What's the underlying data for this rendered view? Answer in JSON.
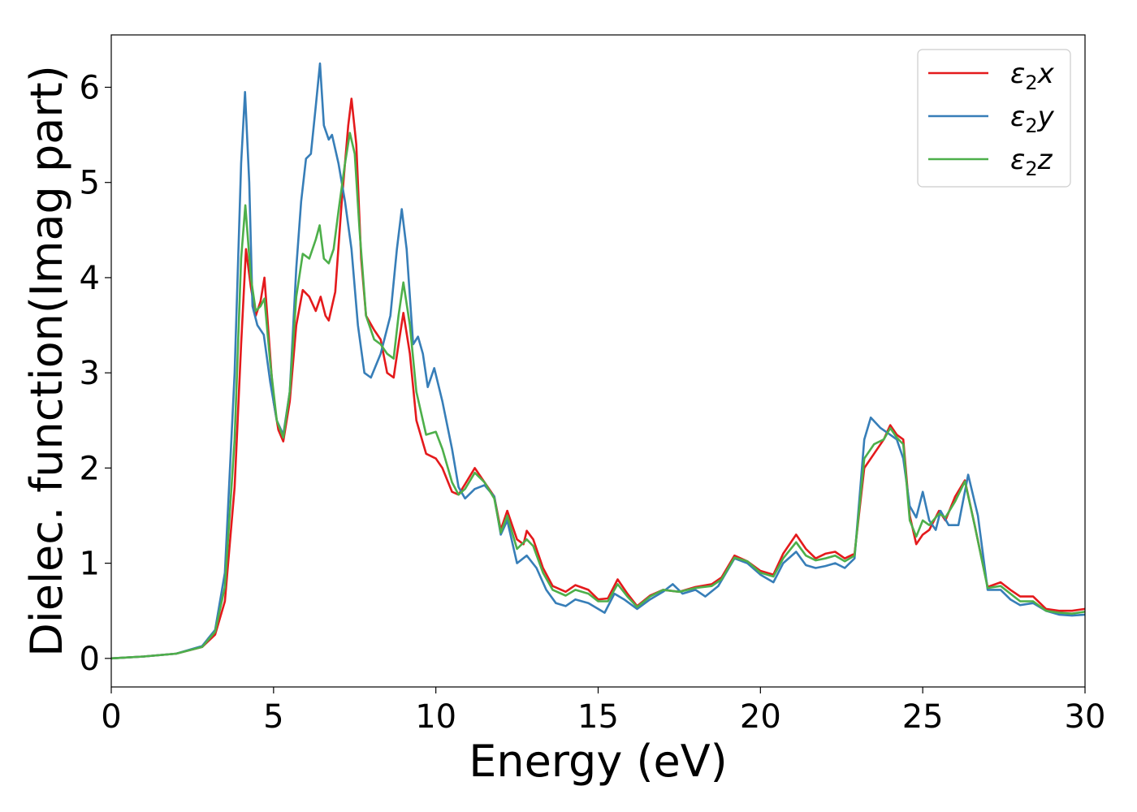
{
  "chart_data": {
    "type": "line",
    "title": "",
    "xlabel": "Energy (eV)",
    "ylabel": "Dielec. function(Imag part)",
    "xlim": [
      0,
      30
    ],
    "ylim": [
      -0.3,
      6.55
    ],
    "xticks": [
      0,
      5,
      10,
      15,
      20,
      25,
      30
    ],
    "yticks": [
      0,
      1,
      2,
      3,
      4,
      5,
      6
    ],
    "grid": false,
    "legend_position": "top-right",
    "series": [
      {
        "name": "ε2x",
        "legend_base": "ε",
        "legend_sub": "2",
        "legend_suffix": "x",
        "color": "#e41a1c",
        "points": [
          [
            0,
            0
          ],
          [
            1,
            0.02
          ],
          [
            2,
            0.05
          ],
          [
            2.8,
            0.12
          ],
          [
            3.2,
            0.25
          ],
          [
            3.5,
            0.6
          ],
          [
            3.8,
            1.8
          ],
          [
            4.0,
            3.3
          ],
          [
            4.15,
            4.3
          ],
          [
            4.3,
            3.9
          ],
          [
            4.45,
            3.6
          ],
          [
            4.6,
            3.75
          ],
          [
            4.72,
            4.0
          ],
          [
            4.85,
            3.4
          ],
          [
            5.0,
            2.7
          ],
          [
            5.15,
            2.4
          ],
          [
            5.3,
            2.28
          ],
          [
            5.5,
            2.7
          ],
          [
            5.7,
            3.5
          ],
          [
            5.9,
            3.87
          ],
          [
            6.1,
            3.8
          ],
          [
            6.3,
            3.65
          ],
          [
            6.45,
            3.8
          ],
          [
            6.6,
            3.6
          ],
          [
            6.7,
            3.55
          ],
          [
            6.9,
            3.85
          ],
          [
            7.1,
            4.8
          ],
          [
            7.3,
            5.6
          ],
          [
            7.4,
            5.88
          ],
          [
            7.55,
            5.4
          ],
          [
            7.7,
            4.2
          ],
          [
            7.85,
            3.6
          ],
          [
            8.1,
            3.45
          ],
          [
            8.3,
            3.35
          ],
          [
            8.5,
            3.0
          ],
          [
            8.7,
            2.95
          ],
          [
            8.85,
            3.3
          ],
          [
            9.0,
            3.63
          ],
          [
            9.2,
            3.2
          ],
          [
            9.4,
            2.5
          ],
          [
            9.7,
            2.15
          ],
          [
            10.0,
            2.1
          ],
          [
            10.2,
            2.0
          ],
          [
            10.5,
            1.75
          ],
          [
            10.7,
            1.72
          ],
          [
            10.9,
            1.83
          ],
          [
            11.2,
            2.0
          ],
          [
            11.5,
            1.85
          ],
          [
            11.8,
            1.7
          ],
          [
            12.0,
            1.35
          ],
          [
            12.2,
            1.55
          ],
          [
            12.5,
            1.25
          ],
          [
            12.7,
            1.2
          ],
          [
            12.8,
            1.34
          ],
          [
            13.0,
            1.25
          ],
          [
            13.3,
            0.95
          ],
          [
            13.6,
            0.76
          ],
          [
            14.0,
            0.7
          ],
          [
            14.3,
            0.77
          ],
          [
            14.7,
            0.72
          ],
          [
            15.0,
            0.62
          ],
          [
            15.3,
            0.63
          ],
          [
            15.6,
            0.83
          ],
          [
            15.9,
            0.68
          ],
          [
            16.2,
            0.55
          ],
          [
            16.6,
            0.66
          ],
          [
            17.0,
            0.72
          ],
          [
            17.5,
            0.7
          ],
          [
            18.0,
            0.75
          ],
          [
            18.5,
            0.78
          ],
          [
            18.8,
            0.85
          ],
          [
            19.2,
            1.08
          ],
          [
            19.6,
            1.02
          ],
          [
            20.0,
            0.92
          ],
          [
            20.4,
            0.88
          ],
          [
            20.7,
            1.1
          ],
          [
            21.1,
            1.3
          ],
          [
            21.4,
            1.15
          ],
          [
            21.7,
            1.05
          ],
          [
            22.0,
            1.1
          ],
          [
            22.3,
            1.12
          ],
          [
            22.6,
            1.05
          ],
          [
            22.9,
            1.1
          ],
          [
            23.2,
            2.0
          ],
          [
            23.5,
            2.15
          ],
          [
            23.8,
            2.3
          ],
          [
            24.0,
            2.45
          ],
          [
            24.2,
            2.35
          ],
          [
            24.4,
            2.3
          ],
          [
            24.6,
            1.5
          ],
          [
            24.8,
            1.2
          ],
          [
            25.0,
            1.3
          ],
          [
            25.2,
            1.35
          ],
          [
            25.5,
            1.55
          ],
          [
            25.7,
            1.45
          ],
          [
            26.0,
            1.7
          ],
          [
            26.3,
            1.87
          ],
          [
            26.6,
            1.4
          ],
          [
            27.0,
            0.75
          ],
          [
            27.4,
            0.8
          ],
          [
            27.7,
            0.72
          ],
          [
            28.0,
            0.65
          ],
          [
            28.4,
            0.65
          ],
          [
            28.8,
            0.52
          ],
          [
            29.2,
            0.5
          ],
          [
            29.6,
            0.5
          ],
          [
            30.0,
            0.52
          ]
        ]
      },
      {
        "name": "ε2y",
        "legend_base": "ε",
        "legend_sub": "2",
        "legend_suffix": "y",
        "color": "#377eb8",
        "points": [
          [
            0,
            0
          ],
          [
            1,
            0.02
          ],
          [
            2,
            0.05
          ],
          [
            2.8,
            0.13
          ],
          [
            3.2,
            0.3
          ],
          [
            3.5,
            0.9
          ],
          [
            3.8,
            3.0
          ],
          [
            4.0,
            5.2
          ],
          [
            4.12,
            5.95
          ],
          [
            4.25,
            5.0
          ],
          [
            4.35,
            3.7
          ],
          [
            4.5,
            3.5
          ],
          [
            4.7,
            3.4
          ],
          [
            4.9,
            2.9
          ],
          [
            5.1,
            2.5
          ],
          [
            5.3,
            2.35
          ],
          [
            5.5,
            2.8
          ],
          [
            5.7,
            4.1
          ],
          [
            5.85,
            4.8
          ],
          [
            6.0,
            5.25
          ],
          [
            6.15,
            5.3
          ],
          [
            6.3,
            5.8
          ],
          [
            6.43,
            6.25
          ],
          [
            6.55,
            5.6
          ],
          [
            6.7,
            5.45
          ],
          [
            6.8,
            5.5
          ],
          [
            7.0,
            5.2
          ],
          [
            7.2,
            4.8
          ],
          [
            7.4,
            4.3
          ],
          [
            7.6,
            3.5
          ],
          [
            7.8,
            3.0
          ],
          [
            8.0,
            2.95
          ],
          [
            8.3,
            3.2
          ],
          [
            8.6,
            3.6
          ],
          [
            8.8,
            4.3
          ],
          [
            8.95,
            4.72
          ],
          [
            9.1,
            4.3
          ],
          [
            9.3,
            3.3
          ],
          [
            9.45,
            3.38
          ],
          [
            9.6,
            3.2
          ],
          [
            9.75,
            2.85
          ],
          [
            9.95,
            3.05
          ],
          [
            10.2,
            2.7
          ],
          [
            10.5,
            2.2
          ],
          [
            10.7,
            1.8
          ],
          [
            10.9,
            1.68
          ],
          [
            11.2,
            1.78
          ],
          [
            11.5,
            1.82
          ],
          [
            11.8,
            1.7
          ],
          [
            12.0,
            1.3
          ],
          [
            12.2,
            1.45
          ],
          [
            12.5,
            1.0
          ],
          [
            12.8,
            1.08
          ],
          [
            13.1,
            0.95
          ],
          [
            13.4,
            0.72
          ],
          [
            13.7,
            0.58
          ],
          [
            14.0,
            0.55
          ],
          [
            14.3,
            0.62
          ],
          [
            14.7,
            0.58
          ],
          [
            15.0,
            0.52
          ],
          [
            15.2,
            0.48
          ],
          [
            15.5,
            0.68
          ],
          [
            15.8,
            0.62
          ],
          [
            16.2,
            0.52
          ],
          [
            16.6,
            0.62
          ],
          [
            17.0,
            0.7
          ],
          [
            17.3,
            0.78
          ],
          [
            17.6,
            0.68
          ],
          [
            18.0,
            0.72
          ],
          [
            18.3,
            0.65
          ],
          [
            18.7,
            0.76
          ],
          [
            19.2,
            1.05
          ],
          [
            19.6,
            1.0
          ],
          [
            20.0,
            0.88
          ],
          [
            20.4,
            0.8
          ],
          [
            20.7,
            1.0
          ],
          [
            21.1,
            1.12
          ],
          [
            21.4,
            0.98
          ],
          [
            21.7,
            0.95
          ],
          [
            22.0,
            0.97
          ],
          [
            22.3,
            1.0
          ],
          [
            22.6,
            0.95
          ],
          [
            22.9,
            1.05
          ],
          [
            23.2,
            2.3
          ],
          [
            23.4,
            2.53
          ],
          [
            23.7,
            2.42
          ],
          [
            24.0,
            2.35
          ],
          [
            24.2,
            2.3
          ],
          [
            24.4,
            2.1
          ],
          [
            24.6,
            1.6
          ],
          [
            24.8,
            1.48
          ],
          [
            25.0,
            1.75
          ],
          [
            25.2,
            1.45
          ],
          [
            25.4,
            1.35
          ],
          [
            25.55,
            1.55
          ],
          [
            25.8,
            1.4
          ],
          [
            26.1,
            1.4
          ],
          [
            26.4,
            1.93
          ],
          [
            26.7,
            1.5
          ],
          [
            27.0,
            0.72
          ],
          [
            27.4,
            0.72
          ],
          [
            27.7,
            0.62
          ],
          [
            28.0,
            0.56
          ],
          [
            28.4,
            0.58
          ],
          [
            28.8,
            0.5
          ],
          [
            29.2,
            0.46
          ],
          [
            29.6,
            0.45
          ],
          [
            30.0,
            0.46
          ]
        ]
      },
      {
        "name": "ε2z",
        "legend_base": "ε",
        "legend_sub": "2",
        "legend_suffix": "z",
        "color": "#4daf4a",
        "points": [
          [
            0,
            0
          ],
          [
            1,
            0.02
          ],
          [
            2,
            0.05
          ],
          [
            2.8,
            0.12
          ],
          [
            3.2,
            0.28
          ],
          [
            3.5,
            0.75
          ],
          [
            3.8,
            2.3
          ],
          [
            4.0,
            4.2
          ],
          [
            4.13,
            4.76
          ],
          [
            4.3,
            4.0
          ],
          [
            4.45,
            3.65
          ],
          [
            4.6,
            3.7
          ],
          [
            4.72,
            3.78
          ],
          [
            4.9,
            3.1
          ],
          [
            5.1,
            2.5
          ],
          [
            5.3,
            2.32
          ],
          [
            5.5,
            2.8
          ],
          [
            5.7,
            3.8
          ],
          [
            5.9,
            4.25
          ],
          [
            6.1,
            4.2
          ],
          [
            6.3,
            4.4
          ],
          [
            6.42,
            4.55
          ],
          [
            6.55,
            4.2
          ],
          [
            6.7,
            4.15
          ],
          [
            6.85,
            4.3
          ],
          [
            7.0,
            4.7
          ],
          [
            7.2,
            5.2
          ],
          [
            7.35,
            5.52
          ],
          [
            7.5,
            5.3
          ],
          [
            7.65,
            4.5
          ],
          [
            7.85,
            3.6
          ],
          [
            8.1,
            3.35
          ],
          [
            8.3,
            3.3
          ],
          [
            8.5,
            3.2
          ],
          [
            8.7,
            3.15
          ],
          [
            8.85,
            3.6
          ],
          [
            9.0,
            3.95
          ],
          [
            9.2,
            3.5
          ],
          [
            9.4,
            2.8
          ],
          [
            9.7,
            2.35
          ],
          [
            10.0,
            2.38
          ],
          [
            10.2,
            2.2
          ],
          [
            10.5,
            1.85
          ],
          [
            10.7,
            1.72
          ],
          [
            10.9,
            1.78
          ],
          [
            11.2,
            1.95
          ],
          [
            11.5,
            1.85
          ],
          [
            11.8,
            1.68
          ],
          [
            12.0,
            1.32
          ],
          [
            12.2,
            1.5
          ],
          [
            12.5,
            1.15
          ],
          [
            12.8,
            1.25
          ],
          [
            13.0,
            1.18
          ],
          [
            13.3,
            0.9
          ],
          [
            13.6,
            0.72
          ],
          [
            14.0,
            0.66
          ],
          [
            14.3,
            0.72
          ],
          [
            14.7,
            0.68
          ],
          [
            15.0,
            0.6
          ],
          [
            15.3,
            0.6
          ],
          [
            15.6,
            0.78
          ],
          [
            15.9,
            0.65
          ],
          [
            16.2,
            0.54
          ],
          [
            16.6,
            0.65
          ],
          [
            17.0,
            0.72
          ],
          [
            17.5,
            0.7
          ],
          [
            18.0,
            0.74
          ],
          [
            18.5,
            0.76
          ],
          [
            18.8,
            0.83
          ],
          [
            19.2,
            1.06
          ],
          [
            19.6,
            1.02
          ],
          [
            20.0,
            0.9
          ],
          [
            20.4,
            0.86
          ],
          [
            20.7,
            1.05
          ],
          [
            21.1,
            1.22
          ],
          [
            21.4,
            1.08
          ],
          [
            21.7,
            1.03
          ],
          [
            22.0,
            1.05
          ],
          [
            22.3,
            1.08
          ],
          [
            22.6,
            1.02
          ],
          [
            22.9,
            1.08
          ],
          [
            23.2,
            2.1
          ],
          [
            23.5,
            2.25
          ],
          [
            23.8,
            2.3
          ],
          [
            24.0,
            2.42
          ],
          [
            24.2,
            2.32
          ],
          [
            24.4,
            2.25
          ],
          [
            24.6,
            1.45
          ],
          [
            24.8,
            1.28
          ],
          [
            25.0,
            1.45
          ],
          [
            25.2,
            1.4
          ],
          [
            25.5,
            1.52
          ],
          [
            25.7,
            1.48
          ],
          [
            26.0,
            1.65
          ],
          [
            26.3,
            1.86
          ],
          [
            26.6,
            1.4
          ],
          [
            27.0,
            0.74
          ],
          [
            27.4,
            0.76
          ],
          [
            27.7,
            0.68
          ],
          [
            28.0,
            0.6
          ],
          [
            28.4,
            0.6
          ],
          [
            28.8,
            0.5
          ],
          [
            29.2,
            0.48
          ],
          [
            29.6,
            0.47
          ],
          [
            30.0,
            0.49
          ]
        ]
      }
    ]
  }
}
